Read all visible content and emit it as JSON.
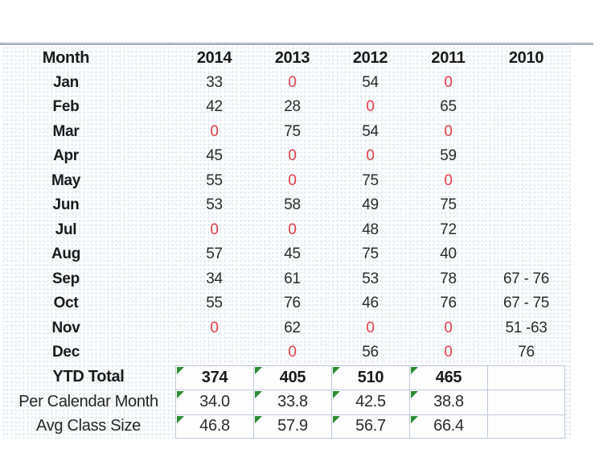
{
  "colors": {
    "red_value": "#e23e4a",
    "flag_green": "#2e8b33",
    "cell_border": "#bfc8da",
    "header_text": "#1a1a1a"
  },
  "table": {
    "header": {
      "month_col": "Month",
      "years": [
        "2014",
        "2013",
        "2012",
        "2011",
        "2010"
      ]
    },
    "month_rows": [
      {
        "label": "Jan",
        "values": [
          "33",
          "0",
          "54",
          "0",
          ""
        ]
      },
      {
        "label": "Feb",
        "values": [
          "42",
          "28",
          "0",
          "65",
          ""
        ]
      },
      {
        "label": "Mar",
        "values": [
          "0",
          "75",
          "54",
          "0",
          ""
        ]
      },
      {
        "label": "Apr",
        "values": [
          "45",
          "0",
          "0",
          "59",
          ""
        ]
      },
      {
        "label": "May",
        "values": [
          "55",
          "0",
          "75",
          "0",
          ""
        ]
      },
      {
        "label": "Jun",
        "values": [
          "53",
          "58",
          "49",
          "75",
          ""
        ]
      },
      {
        "label": "Jul",
        "values": [
          "0",
          "0",
          "48",
          "72",
          ""
        ]
      },
      {
        "label": "Aug",
        "values": [
          "57",
          "45",
          "75",
          "40",
          ""
        ]
      },
      {
        "label": "Sep",
        "values": [
          "34",
          "61",
          "53",
          "78",
          "67 - 76"
        ]
      },
      {
        "label": "Oct",
        "values": [
          "55",
          "76",
          "46",
          "76",
          "67 - 75"
        ]
      },
      {
        "label": "Nov",
        "values": [
          "0",
          "62",
          "0",
          "0",
          "51 -63"
        ]
      },
      {
        "label": "Dec",
        "values": [
          "",
          "0",
          "56",
          "0",
          "76"
        ]
      }
    ],
    "summary_rows": [
      {
        "label": "YTD Total",
        "values": [
          "374",
          "405",
          "510",
          "465",
          ""
        ]
      },
      {
        "label": "Per Calendar Month",
        "values": [
          "34.0",
          "33.8",
          "42.5",
          "38.8",
          ""
        ]
      },
      {
        "label": "Avg Class Size",
        "values": [
          "46.8",
          "57.9",
          "56.7",
          "66.4",
          ""
        ]
      }
    ]
  }
}
